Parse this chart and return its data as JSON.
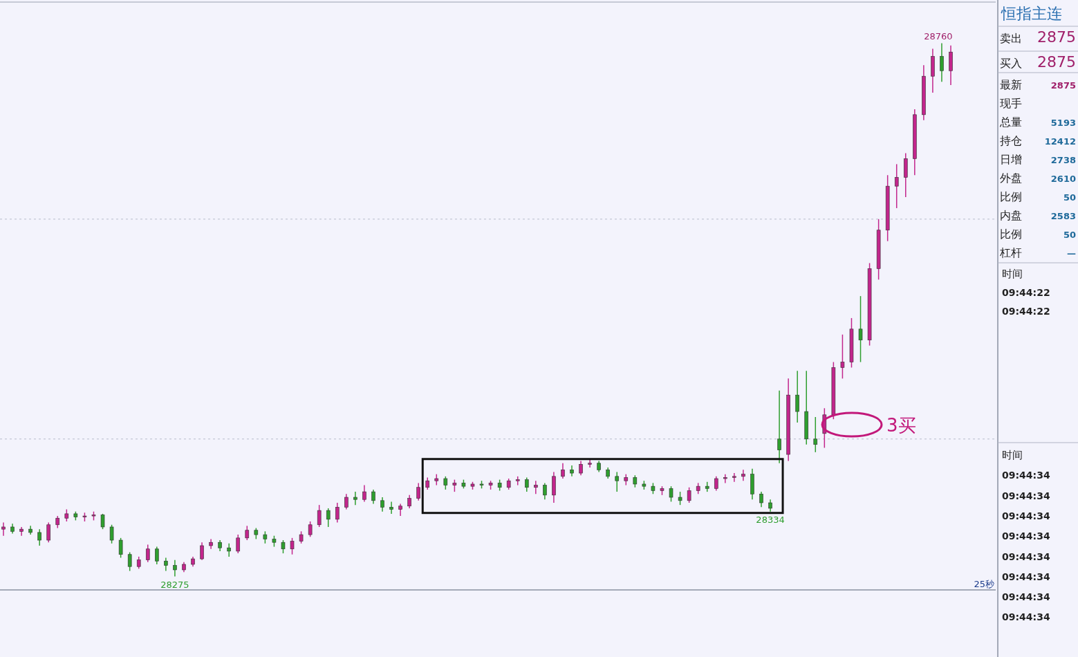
{
  "chart_data": [
    {
      "type": "candlestick",
      "categories": [
        null,
        null,
        null,
        null,
        null,
        null,
        null,
        null,
        null,
        null,
        null,
        null,
        null,
        null,
        null,
        null,
        null,
        null,
        null,
        null,
        null,
        null,
        null,
        null,
        null,
        null,
        null,
        null,
        null,
        null,
        null,
        null,
        null,
        null,
        null,
        null,
        null,
        null,
        null,
        null,
        null,
        null,
        null,
        null,
        null,
        null,
        null,
        null,
        null,
        null,
        null,
        null,
        null,
        null,
        null,
        null,
        null,
        null,
        null,
        null,
        null,
        null,
        null,
        null,
        null,
        null,
        null,
        null,
        null,
        null,
        null,
        null,
        null,
        null,
        null,
        null,
        null,
        null,
        null,
        null,
        null,
        null,
        null,
        null,
        null,
        null,
        null,
        null,
        null,
        null,
        null,
        null,
        null,
        null,
        null,
        null,
        null,
        null,
        null,
        null,
        null,
        null,
        null,
        null,
        null,
        null
      ],
      "ohlc": [
        [
          28318,
          28324,
          28312,
          28320
        ],
        [
          28320,
          28323,
          28314,
          28316
        ],
        [
          28316,
          28320,
          28312,
          28318
        ],
        [
          28318,
          28321,
          28313,
          28315
        ],
        [
          28315,
          28318,
          28303,
          28308
        ],
        [
          28308,
          28324,
          28306,
          28322
        ],
        [
          28322,
          28330,
          28319,
          28328
        ],
        [
          28328,
          28336,
          28325,
          28332
        ],
        [
          28332,
          28334,
          28326,
          28329
        ],
        [
          28329,
          28333,
          28325,
          28330
        ],
        [
          28330,
          28334,
          28326,
          28331
        ],
        [
          28331,
          28332,
          28318,
          28320
        ],
        [
          28320,
          28322,
          28305,
          28308
        ],
        [
          28308,
          28310,
          28292,
          28295
        ],
        [
          28295,
          28297,
          28280,
          28284
        ],
        [
          28284,
          28293,
          28282,
          28290
        ],
        [
          28290,
          28304,
          28288,
          28300
        ],
        [
          28300,
          28302,
          28286,
          28289
        ],
        [
          28289,
          28292,
          28280,
          28285
        ],
        [
          28285,
          28290,
          28275,
          28281
        ],
        [
          28281,
          28288,
          28279,
          28286
        ],
        [
          28286,
          28293,
          28284,
          28291
        ],
        [
          28291,
          28306,
          28290,
          28303
        ],
        [
          28303,
          28309,
          28300,
          28306
        ],
        [
          28306,
          28308,
          28298,
          28301
        ],
        [
          28301,
          28305,
          28293,
          28298
        ],
        [
          28298,
          28313,
          28296,
          28310
        ],
        [
          28310,
          28321,
          28308,
          28317
        ],
        [
          28317,
          28319,
          28309,
          28313
        ],
        [
          28313,
          28316,
          28305,
          28309
        ],
        [
          28309,
          28312,
          28302,
          28306
        ],
        [
          28306,
          28308,
          28296,
          28300
        ],
        [
          28300,
          28310,
          28295,
          28307
        ],
        [
          28307,
          28316,
          28305,
          28313
        ],
        [
          28313,
          28325,
          28311,
          28322
        ],
        [
          28322,
          28340,
          28320,
          28335
        ],
        [
          28335,
          28337,
          28320,
          28327
        ],
        [
          28327,
          28342,
          28324,
          28338
        ],
        [
          28338,
          28350,
          28336,
          28347
        ],
        [
          28347,
          28352,
          28340,
          28345
        ],
        [
          28345,
          28358,
          28343,
          28352
        ],
        [
          28352,
          28354,
          28341,
          28344
        ],
        [
          28344,
          28347,
          28334,
          28338
        ],
        [
          28338,
          28343,
          28332,
          28336
        ],
        [
          28336,
          28341,
          28330,
          28339
        ],
        [
          28339,
          28349,
          28337,
          28346
        ],
        [
          28346,
          28360,
          28344,
          28356
        ],
        [
          28356,
          28365,
          28354,
          28362
        ],
        [
          28362,
          28368,
          28358,
          28364
        ],
        [
          28364,
          28366,
          28354,
          28358
        ],
        [
          28358,
          28363,
          28352,
          28360
        ],
        [
          28360,
          28363,
          28355,
          28357
        ],
        [
          28357,
          28361,
          28354,
          28359
        ],
        [
          28359,
          28362,
          28355,
          28358
        ],
        [
          28358,
          28362,
          28354,
          28360
        ],
        [
          28360,
          28363,
          28353,
          28356
        ],
        [
          28356,
          28364,
          28354,
          28362
        ],
        [
          28362,
          28366,
          28358,
          28363
        ],
        [
          28363,
          28365,
          28352,
          28356
        ],
        [
          28356,
          28362,
          28350,
          28358
        ],
        [
          28358,
          28360,
          28345,
          28349
        ],
        [
          28349,
          28370,
          28342,
          28366
        ],
        [
          28366,
          28378,
          28364,
          28372
        ],
        [
          28372,
          28376,
          28366,
          28369
        ],
        [
          28369,
          28380,
          28367,
          28377
        ],
        [
          28377,
          28382,
          28374,
          28378
        ],
        [
          28378,
          28380,
          28370,
          28372
        ],
        [
          28372,
          28374,
          28364,
          28366
        ],
        [
          28366,
          28370,
          28352,
          28362
        ],
        [
          28362,
          28368,
          28358,
          28365
        ],
        [
          28365,
          28367,
          28356,
          28359
        ],
        [
          28359,
          28362,
          28354,
          28357
        ],
        [
          28357,
          28360,
          28350,
          28353
        ],
        [
          28353,
          28357,
          28349,
          28355
        ],
        [
          28355,
          28357,
          28343,
          28347
        ],
        [
          28347,
          28352,
          28340,
          28344
        ],
        [
          28344,
          28356,
          28342,
          28353
        ],
        [
          28353,
          28360,
          28350,
          28357
        ],
        [
          28357,
          28361,
          28352,
          28355
        ],
        [
          28355,
          28366,
          28353,
          28364
        ],
        [
          28364,
          28368,
          28360,
          28365
        ],
        [
          28365,
          28369,
          28361,
          28366
        ],
        [
          28366,
          28372,
          28362,
          28368
        ],
        [
          28368,
          28373,
          28345,
          28350
        ],
        [
          28350,
          28352,
          28338,
          28342
        ],
        [
          28342,
          28345,
          28334,
          28337
        ],
        [
          28400,
          28444,
          28378,
          28390
        ],
        [
          28386,
          28455,
          28380,
          28440
        ],
        [
          28440,
          28462,
          28415,
          28425
        ],
        [
          28425,
          28462,
          28395,
          28400
        ],
        [
          28400,
          28420,
          28388,
          28395
        ],
        [
          28405,
          28428,
          28392,
          28422
        ],
        [
          28422,
          28470,
          28418,
          28465
        ],
        [
          28465,
          28495,
          28455,
          28470
        ],
        [
          28470,
          28510,
          28465,
          28500
        ],
        [
          28500,
          28530,
          28470,
          28490
        ],
        [
          28490,
          28560,
          28485,
          28555
        ],
        [
          28555,
          28600,
          28545,
          28590
        ],
        [
          28590,
          28640,
          28580,
          28630
        ],
        [
          28630,
          28650,
          28610,
          28638
        ],
        [
          28638,
          28660,
          28620,
          28655
        ],
        [
          28655,
          28700,
          28640,
          28695
        ],
        [
          28695,
          28740,
          28690,
          28730
        ],
        [
          28730,
          28755,
          28715,
          28748
        ],
        [
          28748,
          28760,
          28725,
          28735
        ],
        [
          28735,
          28758,
          28722,
          28752
        ]
      ],
      "colors": [
        "#c2258c",
        "#2e9e2e",
        "#c2258c",
        "#2e9e2e",
        "#2e9e2e",
        "#c2258c",
        "#c2258c",
        "#c2258c",
        "#2e9e2e",
        "#c2258c",
        "#c2258c",
        "#2e9e2e",
        "#2e9e2e",
        "#2e9e2e",
        "#2e9e2e",
        "#c2258c",
        "#c2258c",
        "#2e9e2e",
        "#2e9e2e",
        "#2e9e2e",
        "#c2258c",
        "#c2258c",
        "#c2258c",
        "#c2258c",
        "#2e9e2e",
        "#2e9e2e",
        "#c2258c",
        "#c2258c",
        "#2e9e2e",
        "#2e9e2e",
        "#2e9e2e",
        "#2e9e2e",
        "#c2258c",
        "#c2258c",
        "#c2258c",
        "#c2258c",
        "#2e9e2e",
        "#c2258c",
        "#c2258c",
        "#2e9e2e",
        "#c2258c",
        "#2e9e2e",
        "#2e9e2e",
        "#2e9e2e",
        "#c2258c",
        "#c2258c",
        "#c2258c",
        "#c2258c",
        "#c2258c",
        "#2e9e2e",
        "#c2258c",
        "#2e9e2e",
        "#c2258c",
        "#2e9e2e",
        "#c2258c",
        "#2e9e2e",
        "#c2258c",
        "#c2258c",
        "#2e9e2e",
        "#c2258c",
        "#2e9e2e",
        "#c2258c",
        "#c2258c",
        "#2e9e2e",
        "#c2258c",
        "#c2258c",
        "#2e9e2e",
        "#2e9e2e",
        "#2e9e2e",
        "#c2258c",
        "#2e9e2e",
        "#2e9e2e",
        "#2e9e2e",
        "#c2258c",
        "#2e9e2e",
        "#2e9e2e",
        "#c2258c",
        "#c2258c",
        "#2e9e2e",
        "#c2258c",
        "#c2258c",
        "#c2258c",
        "#c2258c",
        "#2e9e2e",
        "#2e9e2e",
        "#2e9e2e",
        "#2e9e2e",
        "#c2258c",
        "#2e9e2e",
        "#2e9e2e",
        "#2e9e2e",
        "#c2258c",
        "#c2258c",
        "#c2258c",
        "#c2258c",
        "#2e9e2e",
        "#c2258c",
        "#c2258c",
        "#c2258c",
        "#c2258c",
        "#c2258c",
        "#c2258c",
        "#c2258c",
        "#c2258c",
        "#2e9e2e",
        "#c2258c"
      ],
      "yticks": [
        {
          "value": 28400,
          "label": null
        },
        {
          "value": 28600,
          "label": null
        }
      ],
      "grid": "y",
      "annotations": [
        {
          "text": "28275",
          "y": 28275
        },
        {
          "text": "28334",
          "y": 28334
        },
        {
          "text": "28760",
          "y": 28760
        },
        "3买",
        "25秒"
      ]
    },
    {
      "type": "other",
      "title": "恒指主连",
      "categories": [
        "卖出",
        "买入",
        "最新",
        "现手",
        "总量",
        "持仓",
        "日增",
        "外盘",
        "比例",
        "内盘",
        "比例",
        "杠杆"
      ],
      "value_labels": [
        "2875",
        "2875",
        "2875",
        null,
        "5193",
        "12412",
        "2738",
        "2610",
        "50",
        "2583",
        "50",
        "—"
      ],
      "annotations": [
        "时间",
        "09:44:22",
        "09:44:22",
        "时间",
        "09:44:34",
        "09:44:34",
        "09:44:34",
        "09:44:34",
        "09:44:34",
        "09:44:34",
        "09:44:34",
        "09:44:34"
      ]
    }
  ]
}
